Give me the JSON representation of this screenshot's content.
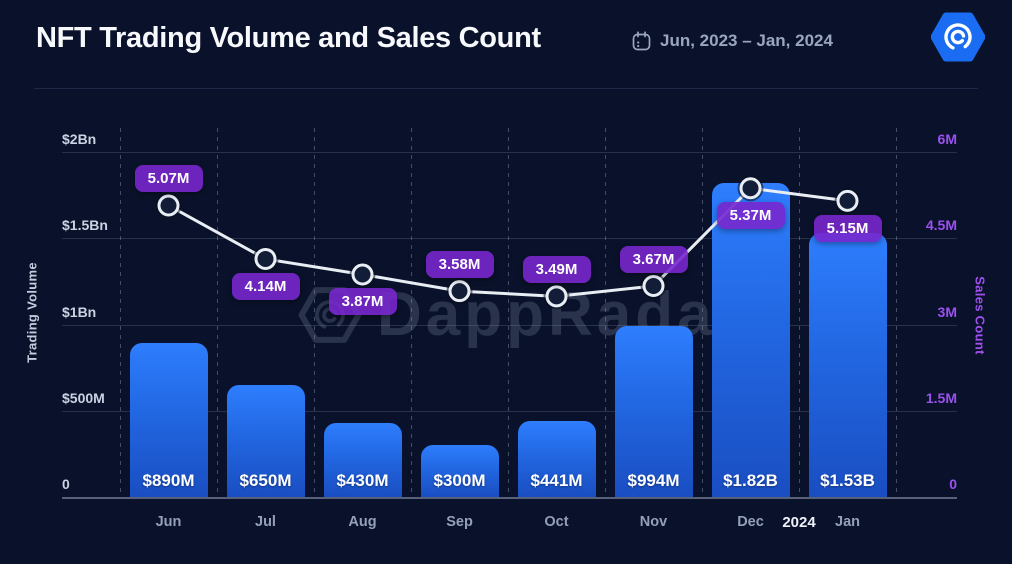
{
  "header": {
    "title": "NFT Trading Volume and Sales Count",
    "date_range": "Jun, 2023 – Jan, 2024"
  },
  "watermark": {
    "text": "DappRadar"
  },
  "chart_data": {
    "type": "bar",
    "subtype": "bar-plus-line-dual-axis",
    "categories": [
      "Jun",
      "Jul",
      "Aug",
      "Sep",
      "Oct",
      "Nov",
      "Dec",
      "Jan"
    ],
    "year_divider": {
      "label": "2024",
      "after_index": 6
    },
    "series": [
      {
        "name": "Trading Volume",
        "type": "bar",
        "axis": "left",
        "values": [
          890000000,
          650000000,
          430000000,
          300000000,
          441000000,
          994000000,
          1820000000,
          1530000000
        ],
        "labels": [
          "$890M",
          "$650M",
          "$430M",
          "$300M",
          "$441M",
          "$994M",
          "$1.82B",
          "$1.53B"
        ]
      },
      {
        "name": "Sales Count",
        "type": "line",
        "axis": "right",
        "values": [
          5070000,
          4140000,
          3870000,
          3580000,
          3490000,
          3670000,
          5370000,
          5150000
        ],
        "labels": [
          "5.07M",
          "4.14M",
          "3.87M",
          "3.58M",
          "3.49M",
          "3.67M",
          "5.37M",
          "5.15M"
        ],
        "label_position": [
          "above",
          "below",
          "below",
          "above",
          "above",
          "above",
          "below",
          "below"
        ]
      }
    ],
    "left_axis": {
      "title": "Trading Volume",
      "ticks": [
        "$2Bn",
        "$1.5Bn",
        "$1Bn",
        "$500M",
        "0"
      ],
      "tick_values": [
        2000000000,
        1500000000,
        1000000000,
        500000000,
        0
      ],
      "max": 2000000000
    },
    "right_axis": {
      "title": "Sales Count",
      "ticks": [
        "6M",
        "4.5M",
        "3M",
        "1.5M",
        "0"
      ],
      "tick_values": [
        6000000,
        4500000,
        3000000,
        1500000,
        0
      ],
      "max": 6000000
    },
    "legend": "none",
    "grid": {
      "horizontal": true,
      "vertical_dashed": true
    },
    "colors": {
      "background": "#0a122b",
      "bar_top": "#2e7efe",
      "bar_bottom": "#1a4ec2",
      "line": "#e9eef5",
      "dot_fill": "#121d38",
      "badge": "#7727cd",
      "left_axis_text": "#c9d3e2",
      "right_axis_text": "#9b51ee",
      "month_text": "#93a0b8",
      "title_text": "#f7f9fc",
      "logo_blue": "#1a6df2"
    }
  }
}
